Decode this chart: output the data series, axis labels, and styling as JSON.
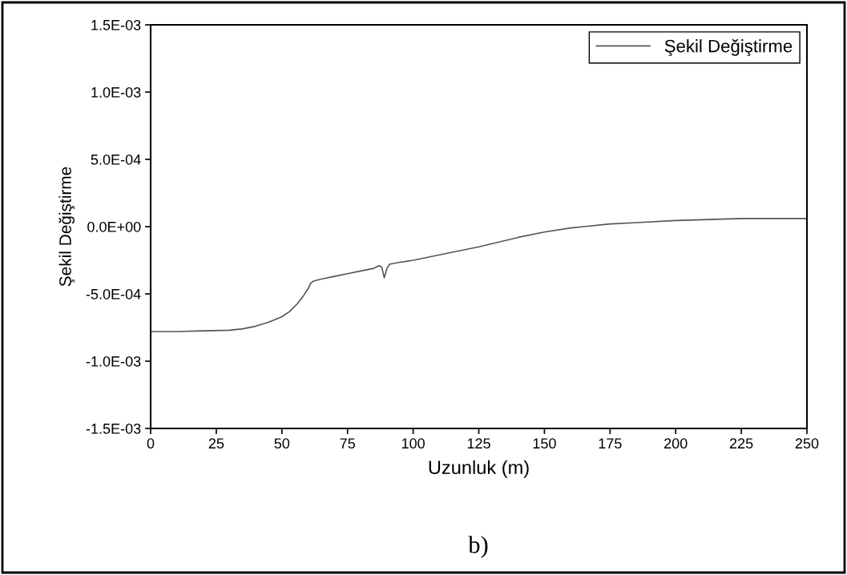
{
  "chart_data": {
    "type": "line",
    "xlabel": "Uzunluk (m)",
    "ylabel": "Şekil Değiştirme",
    "annotations": [
      "b)"
    ],
    "x": [
      0,
      10,
      20,
      30,
      35,
      40,
      45,
      50,
      53,
      56,
      58,
      60,
      61,
      62,
      65,
      70,
      75,
      80,
      85,
      87,
      88,
      89,
      90,
      91,
      92,
      95,
      100,
      110,
      125,
      140,
      150,
      160,
      165,
      175,
      185,
      200,
      225,
      250
    ],
    "series": [
      {
        "name": "Şekil Değiştirme",
        "color": "#555555",
        "values": [
          -0.00078,
          -0.00078,
          -0.000775,
          -0.00077,
          -0.00076,
          -0.00074,
          -0.00071,
          -0.00067,
          -0.00063,
          -0.00057,
          -0.00052,
          -0.00046,
          -0.00042,
          -0.000405,
          -0.00039,
          -0.00037,
          -0.00035,
          -0.00033,
          -0.00031,
          -0.00029,
          -0.0003,
          -0.00038,
          -0.00031,
          -0.00028,
          -0.000275,
          -0.000265,
          -0.00025,
          -0.00021,
          -0.00015,
          -8e-05,
          -4e-05,
          -1e-05,
          0.0,
          2e-05,
          3e-05,
          4.5e-05,
          6e-05,
          6e-05
        ]
      }
    ],
    "xlim": [
      0,
      250
    ],
    "xticks": [
      0,
      25,
      50,
      75,
      100,
      125,
      150,
      175,
      200,
      225,
      250
    ],
    "ylim": [
      -0.0015,
      0.0015
    ],
    "yticks": [
      {
        "value": -0.0015,
        "label": "-1.5E-03"
      },
      {
        "value": -0.001,
        "label": "-1.0E-03"
      },
      {
        "value": -0.0005,
        "label": "-5.0E-04"
      },
      {
        "value": 0,
        "label": "0.0E+00"
      },
      {
        "value": 0.0005,
        "label": "5.0E-04"
      },
      {
        "value": 0.001,
        "label": "1.0E-03"
      },
      {
        "value": 0.0015,
        "label": "1.5E-03"
      }
    ],
    "legend": "top right",
    "grid": false
  }
}
